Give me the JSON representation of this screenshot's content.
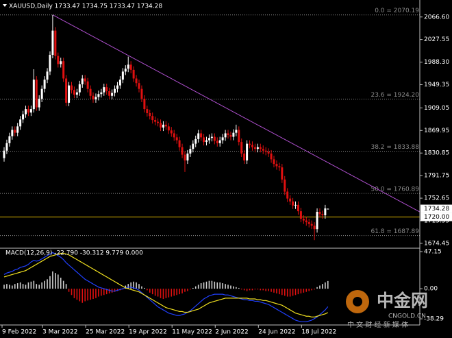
{
  "chart_data": {
    "type": "candlestick",
    "title": "XAUUSD,Daily  1733.47 1734.75 1733.47 1734.28",
    "categories": [
      "9 Feb 2022",
      null,
      null,
      null,
      null,
      null,
      null,
      null,
      null,
      null,
      null,
      null,
      null,
      null,
      null,
      "3 Mar 2022",
      null,
      null,
      null,
      null,
      null,
      null,
      null,
      null,
      null,
      null,
      null,
      null,
      null,
      null,
      null,
      "25 Mar 2022",
      null,
      null,
      null,
      null,
      null,
      null,
      null,
      null,
      null,
      null,
      null,
      null,
      null,
      null,
      null,
      "19 Apr 2022",
      null,
      null,
      null,
      null,
      null,
      null,
      null,
      null,
      null,
      null,
      null,
      null,
      null,
      null,
      null,
      "11 May 2022",
      null,
      null,
      null,
      null,
      null,
      null,
      null,
      null,
      null,
      null,
      null,
      null,
      null,
      null,
      null,
      "2 Jun 2022",
      null,
      null,
      null,
      null,
      null,
      null,
      null,
      null,
      null,
      null,
      null,
      null,
      null,
      null,
      null,
      "24 Jun 2022",
      null,
      null,
      null,
      null,
      null,
      null,
      null,
      null,
      null,
      null,
      null,
      null,
      null,
      null,
      null,
      "18 Jul 2022",
      null,
      null,
      null,
      null,
      null,
      null,
      null,
      null,
      null
    ],
    "open": [
      1822,
      1835,
      1848,
      1860,
      1871,
      1866,
      1877,
      1889,
      1898,
      1907,
      1901,
      1907,
      1958,
      1910,
      1925,
      1942,
      1958,
      1972,
      2001,
      2043,
      1999,
      1985,
      1990,
      1960,
      1918,
      1948,
      1940,
      1932,
      1936,
      1950,
      1960,
      1955,
      1942,
      1930,
      1924,
      1928,
      1933,
      1936,
      1945,
      1938,
      1930,
      1935,
      1942,
      1948,
      1958,
      1972,
      1977,
      1984,
      1975,
      1960,
      1952,
      1942,
      1925,
      1907,
      1900,
      1895,
      1888,
      1885,
      1883,
      1875,
      1880,
      1877,
      1870,
      1865,
      1858,
      1853,
      1841,
      1828,
      1818,
      1830,
      1838,
      1847,
      1855,
      1865,
      1858,
      1850,
      1853,
      1857,
      1859,
      1852,
      1848,
      1853,
      1858,
      1865,
      1862,
      1859,
      1866,
      1871,
      1850,
      1830,
      1818,
      1847,
      1845,
      1841,
      1838,
      1841,
      1838,
      1835,
      1833,
      1830,
      1820,
      1812,
      1808,
      1806,
      1785,
      1764,
      1752,
      1747,
      1740,
      1741,
      1730,
      1717,
      1714,
      1711,
      1708,
      1705,
      1699,
      1729,
      1725,
      1723,
      1733.47
    ],
    "high": [
      1841,
      1854,
      1866,
      1877,
      1877,
      1883,
      1895,
      1904,
      1913,
      1913,
      1913,
      1976,
      1964,
      1931,
      1948,
      1964,
      1978,
      2007,
      2070.19,
      2049,
      2005,
      1996,
      1996,
      1966,
      1954,
      1954,
      1946,
      1942,
      1956,
      1966,
      1966,
      1961,
      1948,
      1936,
      1934,
      1939,
      1942,
      1951,
      1951,
      1944,
      1941,
      1948,
      1954,
      1964,
      1978,
      1983,
      1998,
      1990,
      1981,
      1966,
      1958,
      1948,
      1931,
      1913,
      1906,
      1901,
      1894,
      1891,
      1889,
      1886,
      1886,
      1883,
      1876,
      1871,
      1864,
      1859,
      1847,
      1834,
      1836,
      1844,
      1853,
      1861,
      1871,
      1871,
      1864,
      1859,
      1863,
      1865,
      1865,
      1858,
      1859,
      1864,
      1871,
      1871,
      1868,
      1872,
      1880,
      1877,
      1856,
      1836,
      1853,
      1853,
      1851,
      1847,
      1847,
      1847,
      1844,
      1841,
      1839,
      1836,
      1826,
      1818,
      1814,
      1812,
      1791,
      1770,
      1758,
      1753,
      1747,
      1747,
      1736,
      1723,
      1720,
      1717,
      1714,
      1711,
      1735,
      1735,
      1731,
      1741,
      1734.75
    ],
    "low": [
      1816,
      1829,
      1842,
      1854,
      1860,
      1860,
      1871,
      1883,
      1892,
      1895,
      1895,
      1901,
      1904,
      1904,
      1919,
      1936,
      1952,
      1966,
      1995,
      1993,
      1979,
      1979,
      1954,
      1912,
      1912,
      1934,
      1926,
      1926,
      1930,
      1944,
      1949,
      1936,
      1924,
      1918,
      1918,
      1922,
      1927,
      1930,
      1932,
      1924,
      1924,
      1929,
      1936,
      1942,
      1952,
      1966,
      1971,
      1969,
      1954,
      1946,
      1936,
      1919,
      1901,
      1894,
      1889,
      1882,
      1879,
      1877,
      1869,
      1869,
      1871,
      1864,
      1859,
      1852,
      1847,
      1835,
      1822,
      1798,
      1812,
      1824,
      1832,
      1841,
      1849,
      1852,
      1844,
      1844,
      1847,
      1851,
      1846,
      1842,
      1842,
      1847,
      1852,
      1856,
      1853,
      1853,
      1860,
      1844,
      1824,
      1812,
      1812,
      1839,
      1835,
      1832,
      1832,
      1832,
      1829,
      1827,
      1824,
      1814,
      1806,
      1802,
      1800,
      1779,
      1758,
      1746,
      1741,
      1734,
      1734,
      1724,
      1711,
      1708,
      1705,
      1702,
      1699,
      1680,
      1693,
      1719,
      1717,
      1717,
      1733.47
    ],
    "close": [
      1835,
      1848,
      1860,
      1871,
      1866,
      1877,
      1889,
      1898,
      1907,
      1901,
      1907,
      1958,
      1910,
      1925,
      1942,
      1958,
      1972,
      2001,
      2043,
      1999,
      1985,
      1990,
      1960,
      1918,
      1948,
      1940,
      1932,
      1936,
      1950,
      1960,
      1955,
      1942,
      1930,
      1924,
      1928,
      1933,
      1936,
      1945,
      1938,
      1930,
      1935,
      1942,
      1948,
      1958,
      1972,
      1977,
      1984,
      1975,
      1960,
      1952,
      1942,
      1925,
      1907,
      1900,
      1895,
      1888,
      1885,
      1883,
      1875,
      1880,
      1877,
      1870,
      1865,
      1858,
      1853,
      1841,
      1828,
      1818,
      1830,
      1838,
      1847,
      1855,
      1865,
      1858,
      1850,
      1853,
      1857,
      1859,
      1852,
      1848,
      1853,
      1858,
      1865,
      1862,
      1859,
      1866,
      1871,
      1850,
      1830,
      1818,
      1847,
      1845,
      1841,
      1838,
      1841,
      1838,
      1835,
      1833,
      1830,
      1820,
      1812,
      1808,
      1806,
      1785,
      1764,
      1752,
      1747,
      1740,
      1741,
      1730,
      1717,
      1714,
      1711,
      1708,
      1705,
      1699,
      1729,
      1725,
      1723,
      1735,
      1734.28
    ],
    "up_color": "#ffffff",
    "down_color": "#e01010",
    "ylim": [
      1666,
      2096
    ],
    "yticks": [
      {
        "value": 2066.6,
        "label": "2066.60"
      },
      {
        "value": 2027.55,
        "label": "2027.55"
      },
      {
        "value": 1988.3,
        "label": "1988.30"
      },
      {
        "value": 1949.35,
        "label": "1949.35"
      },
      {
        "value": 1909.05,
        "label": "1909.05"
      },
      {
        "value": 1869.95,
        "label": "1869.95"
      },
      {
        "value": 1830.85,
        "label": "1830.85"
      },
      {
        "value": 1791.75,
        "label": "1791.75"
      },
      {
        "value": 1752.65,
        "label": "1752.65"
      },
      {
        "value": 1713.55,
        "label": "1713.55"
      },
      {
        "value": 1674.45,
        "label": "1674.45"
      }
    ],
    "fib_levels": [
      {
        "value": 2070.19,
        "label": "0.0 = 2070.19"
      },
      {
        "value": 1924.2,
        "label": "23.6 = 1924.20"
      },
      {
        "value": 1833.88,
        "label": "38.2 = 1833.88"
      },
      {
        "value": 1760.89,
        "label": "50.0 = 1760.89"
      },
      {
        "value": 1687.89,
        "label": "61.8 = 1687.89"
      }
    ],
    "fib_color": "#8a8a8a",
    "trendline": {
      "x": [
        18,
        154
      ],
      "values": [
        2070.19,
        1729
      ],
      "color": "#b050d0"
    },
    "price_labels": [
      {
        "value": 1734.28,
        "label": "1734.28"
      },
      {
        "value": 1720,
        "label": "1720.00",
        "line_color": "#e8c000"
      }
    ],
    "macd": {
      "title": "MACD(12,26,9) -22.790 -30.312 9.779 0.000",
      "ylim": [
        -46.1,
        51.5
      ],
      "yticks": [
        47.15,
        {
          "value": 0,
          "label": "0.00"
        },
        -38.29
      ],
      "histogram": {
        "color": "#d0d0d0",
        "negative_color": "#e01010",
        "values": [
          5,
          6,
          5,
          4,
          6,
          7,
          8,
          6,
          5,
          8,
          9,
          10,
          6,
          5,
          8,
          10,
          12,
          16,
          22,
          20,
          18,
          14,
          10,
          6,
          -4,
          -8,
          -12,
          -14,
          -16,
          -18,
          -16,
          -15,
          -14,
          -13,
          -12,
          -10,
          -9,
          -8,
          -7,
          -6,
          -5,
          -4,
          -3,
          -2,
          -1,
          4,
          6,
          8,
          9,
          8,
          6,
          3,
          1,
          -2,
          -5,
          -7,
          -9,
          -10,
          -12,
          -13,
          -12,
          -11,
          -10,
          -9,
          -8,
          -7,
          -6,
          -4,
          -3,
          -1,
          1,
          3,
          5,
          7,
          8,
          9,
          10,
          10,
          9,
          8,
          8,
          7,
          6,
          5,
          4,
          3,
          2,
          1,
          -1,
          -2,
          -3,
          -2,
          -2,
          -1,
          -1,
          -2,
          -2,
          -3,
          -3,
          -4,
          -5,
          -6,
          -7,
          -8,
          -9,
          -10,
          -10,
          -9,
          -8,
          -7,
          -6,
          -5,
          -4,
          -3,
          -2,
          -1,
          2,
          4,
          6,
          8,
          9.779
        ]
      },
      "main": {
        "color": "#2040ff",
        "values": [
          18,
          20,
          21,
          22,
          24,
          25,
          27,
          28,
          29,
          31,
          34,
          36,
          35,
          36,
          38,
          40,
          42,
          44,
          46,
          44,
          42,
          40,
          37,
          33,
          30,
          27,
          24,
          21,
          18,
          15,
          12,
          10,
          8,
          6,
          4,
          2,
          1,
          0,
          -1,
          -2,
          -3,
          -3,
          -2,
          -1,
          0,
          1,
          2,
          2,
          1,
          0,
          -2,
          -5,
          -8,
          -11,
          -14,
          -17,
          -20,
          -23,
          -25,
          -27,
          -29,
          -31,
          -32,
          -33,
          -34,
          -34,
          -33,
          -32,
          -30,
          -28,
          -25,
          -22,
          -19,
          -16,
          -13,
          -11,
          -9,
          -8,
          -7,
          -7,
          -7,
          -7,
          -8,
          -8,
          -9,
          -10,
          -11,
          -12,
          -13,
          -14,
          -14,
          -15,
          -15,
          -16,
          -16,
          -17,
          -18,
          -19,
          -20,
          -22,
          -24,
          -26,
          -28,
          -30,
          -32,
          -34,
          -36,
          -38,
          -40,
          -41,
          -42,
          -42,
          -42,
          -41,
          -40,
          -38,
          -36,
          -33,
          -30,
          -27,
          -22.79
        ]
      },
      "signal": {
        "color": "#f0e020",
        "values": [
          15,
          16,
          17,
          18,
          19,
          20,
          21,
          22,
          23,
          25,
          27,
          29,
          31,
          33,
          35,
          37,
          39,
          41,
          42,
          43,
          44,
          45,
          45,
          44,
          43,
          41,
          39,
          37,
          35,
          33,
          31,
          29,
          27,
          25,
          23,
          21,
          19,
          17,
          15,
          13,
          11,
          9,
          7,
          5,
          3,
          1,
          0,
          -1,
          -2,
          -3,
          -4,
          -6,
          -8,
          -10,
          -12,
          -14,
          -16,
          -18,
          -20,
          -22,
          -24,
          -25,
          -26,
          -27,
          -28,
          -29,
          -29,
          -30,
          -30,
          -29,
          -28,
          -27,
          -26,
          -24,
          -22,
          -20,
          -18,
          -17,
          -16,
          -15,
          -14,
          -13,
          -12,
          -12,
          -12,
          -12,
          -12,
          -12,
          -12,
          -12,
          -12,
          -13,
          -13,
          -13,
          -14,
          -14,
          -15,
          -15,
          -16,
          -17,
          -18,
          -19,
          -20,
          -21,
          -23,
          -25,
          -27,
          -29,
          -31,
          -32,
          -33,
          -34,
          -35,
          -35,
          -36,
          -36,
          -35,
          -34,
          -33,
          -32,
          -30.312
        ]
      }
    },
    "watermark": {
      "name": "中金网",
      "domain": "CNGOLD.CN",
      "slogan": "中 文 财 经 新 媒 体"
    }
  }
}
